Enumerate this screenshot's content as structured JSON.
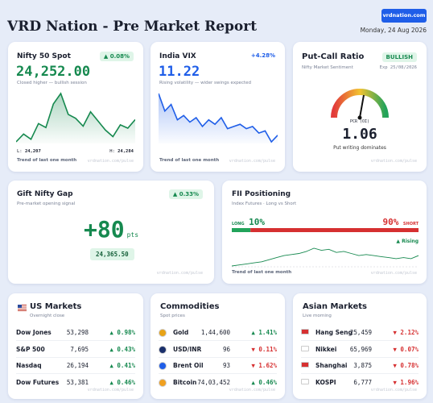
{
  "header": {
    "title": "VRD Nation - Pre Market Report",
    "button": "vrdnation.com",
    "date": "Monday, 24 Aug 2026"
  },
  "nifty": {
    "title": "Nifty 50 Spot",
    "badge": "▲ 0.08%",
    "value": "24,252.00",
    "note": "Closed higher — bullish session",
    "low_label": "L:",
    "low": "24,207",
    "high_label": "H:",
    "high": "24,284",
    "footer": "Trend of last one month",
    "watermark": "vrdnation.com/pulse",
    "sparkline": [
      24210,
      24222,
      24214,
      24238,
      24232,
      24268,
      24284,
      24252,
      24246,
      24234,
      24256,
      24242,
      24228,
      24218,
      24236,
      24231,
      24244
    ]
  },
  "vix": {
    "title": "India VIX",
    "change": "+4.28%",
    "value": "11.22",
    "note": "Rising volatility — wider swings expected",
    "footer": "Trend of last one month",
    "watermark": "vrdnation.com/pulse",
    "sparkline": [
      13.4,
      12.6,
      12.9,
      12.2,
      12.4,
      12.1,
      12.3,
      11.9,
      12.2,
      12.0,
      12.3,
      11.8,
      11.9,
      12.0,
      11.8,
      11.9,
      11.6,
      11.7,
      11.2,
      11.5
    ]
  },
  "pcr": {
    "title": "Put-Call Ratio",
    "badge": "BULLISH",
    "subtitle": "Nifty Market Sentiment",
    "expiry": "Exp 25/08/2026",
    "gauge_label": "PCR (OI)",
    "value": "1.06",
    "note": "Put writing dominates",
    "watermark": "vrdnation.com/pulse"
  },
  "gift": {
    "title": "Gift Nifty Gap",
    "badge": "▲ 0.33%",
    "subtitle": "Pre-market opening signal",
    "gap": "+80",
    "unit": "pts",
    "level": "24,365.50",
    "watermark": "vrdnation.com/pulse"
  },
  "fii": {
    "title": "FII Positioning",
    "subtitle": "Index Futures · Long vs Short",
    "long_label": "LONG",
    "long": {
      "value": 10,
      "label": "10%"
    },
    "short_label": "SHORT",
    "short": {
      "value": 90,
      "label": "90%"
    },
    "trend": "▲ Rising",
    "footer": "Trend of last one month",
    "watermark": "vrdnation.com/pulse",
    "sparkline": [
      4,
      4.5,
      5,
      5.5,
      6,
      7,
      8,
      9,
      9.5,
      10,
      11,
      12.5,
      11.5,
      12,
      10.5,
      11,
      10,
      9,
      9.5,
      9,
      8.5,
      8,
      7.5,
      8,
      7.5,
      9
    ]
  },
  "us": {
    "title": "US Markets",
    "subtitle": "Overnight close",
    "watermark": "vrdnation.com/pulse",
    "rows": [
      [
        "Dow Jones",
        "53,298",
        "▲ 0.98%"
      ],
      [
        "S&P 500",
        "7,695",
        "▲ 0.43%"
      ],
      [
        "Nasdaq",
        "26,194",
        "▲ 0.41%"
      ],
      [
        "Dow Futures",
        "53,381",
        "▲ 0.46%"
      ]
    ]
  },
  "commodities": {
    "title": "Commodities",
    "subtitle": "Spot prices",
    "watermark": "vrdnation.com/pulse",
    "rows": [
      [
        "Gold",
        "1,44,600",
        "▲ 1.41%"
      ],
      [
        "USD/INR",
        "96",
        "▼ 0.11%"
      ],
      [
        "Brent Oil",
        "93",
        "▼ 1.62%"
      ],
      [
        "Bitcoin",
        "74,03,452",
        "▲ 0.46%"
      ]
    ]
  },
  "asia": {
    "title": "Asian Markets",
    "subtitle": "Live morning",
    "watermark": "vrdnation.com/pulse",
    "rows": [
      [
        "Hang Seng",
        "25,459",
        "▼ 2.12%"
      ],
      [
        "Nikkei",
        "65,969",
        "▼ 0.07%"
      ],
      [
        "Shanghai",
        "3,875",
        "▼ 0.78%"
      ],
      [
        "KOSPI",
        "6,777",
        "▼ 1.96%"
      ]
    ]
  }
}
